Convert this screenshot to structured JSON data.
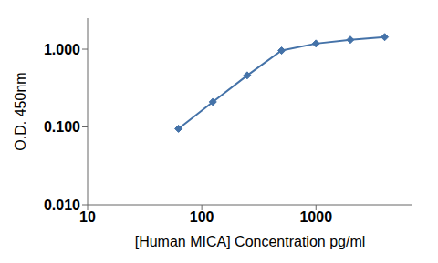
{
  "chart_data": {
    "type": "line",
    "x": [
      62.5,
      125,
      250,
      500,
      1000,
      2000,
      4000
    ],
    "values": [
      0.095,
      0.21,
      0.46,
      0.96,
      1.18,
      1.32,
      1.43
    ],
    "color": "#4472a8",
    "marker": "diamond",
    "xlabel": "[Human MICA] Concentration pg/ml",
    "ylabel": "O.D. 450nm",
    "log": true,
    "xlim": [
      10,
      7000
    ],
    "ylim": [
      0.01,
      2.5
    ],
    "xticks": [
      10,
      100,
      1000
    ],
    "yticks": [
      {
        "value": 0.01,
        "label": "0.010"
      },
      {
        "value": 0.1,
        "label": "0.100"
      },
      {
        "value": 1.0,
        "label": "1.000"
      }
    ],
    "grid": false
  }
}
